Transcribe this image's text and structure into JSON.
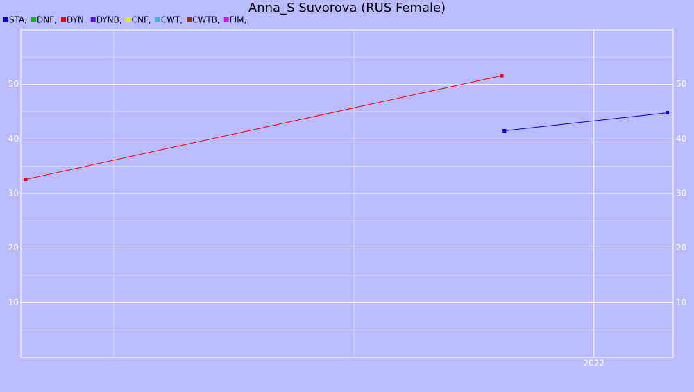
{
  "chart_data": {
    "type": "line",
    "title": "Anna_S Suvorova (RUS Female)",
    "series": [
      {
        "name": "STA,",
        "color": "#0000dd",
        "x": [
          2021.627,
          2022.306
        ],
        "values": [
          41.5,
          44.8
        ]
      },
      {
        "name": "DNF,",
        "color": "#00bb00",
        "x": [],
        "values": []
      },
      {
        "name": "DYN,",
        "color": "#ee0000",
        "x": [
          2019.633,
          2021.616
        ],
        "values": [
          32.6,
          51.6
        ]
      },
      {
        "name": "DYNB,",
        "color": "#6600ee",
        "x": [],
        "values": []
      },
      {
        "name": "CNF,",
        "color": "#eeee00",
        "x": [],
        "values": []
      },
      {
        "name": "CWT,",
        "color": "#33bbdd",
        "x": [],
        "values": []
      },
      {
        "name": "CWTB,",
        "color": "#993300",
        "x": [],
        "values": []
      },
      {
        "name": "FIM,",
        "color": "#ee00ee",
        "x": [],
        "values": []
      }
    ],
    "xlim": [
      2019.613,
      2022.33
    ],
    "xticks": [
      2022
    ],
    "x_minor_gridlines": [
      2020,
      2021
    ],
    "ylim": [
      0,
      60
    ],
    "yticks": [
      10,
      20,
      30,
      40,
      50
    ],
    "y_minor_gridlines": [
      5,
      15,
      25,
      35,
      45,
      55
    ],
    "grid": true,
    "legend": "top-left",
    "right_axis_labels": true
  }
}
